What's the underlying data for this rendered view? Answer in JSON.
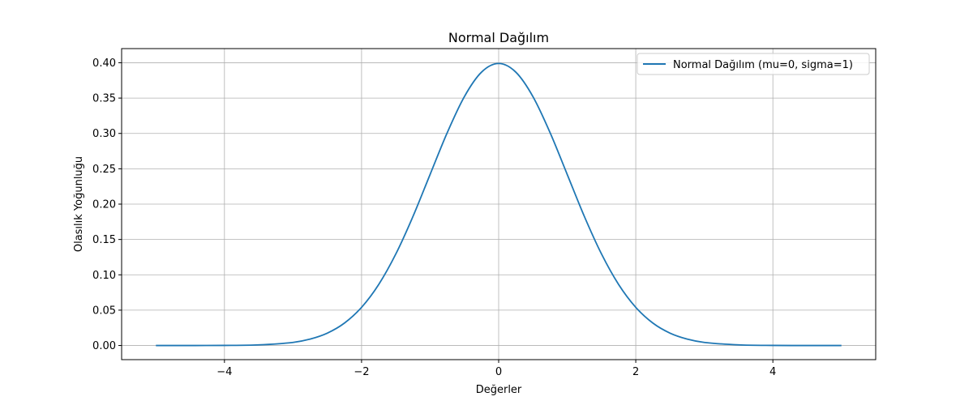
{
  "chart_data": {
    "type": "line",
    "title": "Normal Dağılım",
    "xlabel": "Değerler",
    "ylabel": "Olasılık Yoğunluğu",
    "xlim": [
      -5.5,
      5.5
    ],
    "ylim": [
      -0.02,
      0.42
    ],
    "xticks": [
      -4,
      -2,
      0,
      2,
      4
    ],
    "xtick_labels": [
      "−4",
      "−2",
      "0",
      "2",
      "4"
    ],
    "yticks": [
      0.0,
      0.05,
      0.1,
      0.15,
      0.2,
      0.25,
      0.3,
      0.35,
      0.4
    ],
    "ytick_labels": [
      "0.00",
      "0.05",
      "0.10",
      "0.15",
      "0.20",
      "0.25",
      "0.30",
      "0.35",
      "0.40"
    ],
    "grid": true,
    "legend_position": "top-right",
    "series": [
      {
        "name": "Normal Dağılım (mu=0, sigma=1)",
        "color": "#1f77b4",
        "x": [
          -5,
          -4.5,
          -4,
          -3.5,
          -3,
          -2.75,
          -2.5,
          -2.25,
          -2,
          -1.75,
          -1.5,
          -1.25,
          -1,
          -0.75,
          -0.5,
          -0.25,
          0,
          0.25,
          0.5,
          0.75,
          1,
          1.25,
          1.5,
          1.75,
          2,
          2.25,
          2.5,
          2.75,
          3,
          3.5,
          4,
          4.5,
          5
        ],
        "y": [
          0.0,
          0.0,
          0.0001,
          0.0009,
          0.0044,
          0.0091,
          0.0175,
          0.0317,
          0.054,
          0.0863,
          0.1295,
          0.1826,
          0.242,
          0.3011,
          0.3521,
          0.3867,
          0.3989,
          0.3867,
          0.3521,
          0.3011,
          0.242,
          0.1826,
          0.1295,
          0.0863,
          0.054,
          0.0317,
          0.0175,
          0.0091,
          0.0044,
          0.0009,
          0.0001,
          0.0,
          0.0
        ]
      }
    ]
  }
}
